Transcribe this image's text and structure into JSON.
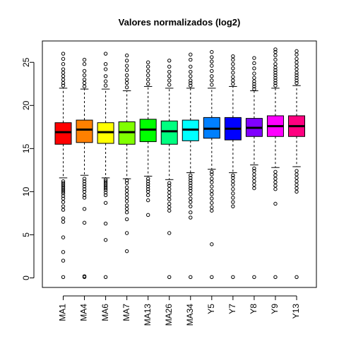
{
  "chart_data": {
    "type": "boxplot",
    "title": "Valores normalizados (log2)",
    "xlabel": "",
    "ylabel": "",
    "ylim": [
      -1,
      27
    ],
    "yticks": [
      0,
      5,
      10,
      15,
      20,
      25
    ],
    "grid": false,
    "legend": "none",
    "categories": [
      "MA1",
      "MA4",
      "MA6",
      "MA7",
      "MA13",
      "MA26",
      "MA34",
      "Y5",
      "Y7",
      "Y8",
      "Y9",
      "Y13"
    ],
    "colors": [
      "#FF0000",
      "#FF8000",
      "#FFFF00",
      "#80FF00",
      "#00FF00",
      "#00FF80",
      "#00FFFF",
      "#0080FF",
      "#0000FF",
      "#8000FF",
      "#FF00FF",
      "#FF0080"
    ],
    "boxes": [
      {
        "whisker_low": 11.6,
        "q1": 15.5,
        "median": 16.9,
        "q3": 18.0,
        "whisker_high": 22.0,
        "outliers": [
          0.1,
          2.0,
          3.0,
          4.7,
          6.5,
          6.9,
          7.9,
          8.3,
          8.8,
          9.2,
          9.5,
          9.8,
          10.0,
          10.2,
          10.4,
          10.6,
          10.8,
          11.0,
          11.2,
          22.3,
          22.6,
          23.0,
          23.4,
          23.8,
          24.2,
          24.8,
          25.4,
          26.0
        ]
      },
      {
        "whisker_low": 11.9,
        "q1": 15.7,
        "median": 17.2,
        "q3": 18.3,
        "whisker_high": 21.9,
        "outliers": [
          0.1,
          0.2,
          6.4,
          8.0,
          9.3,
          9.6,
          10.0,
          10.3,
          10.6,
          10.9,
          11.2,
          11.5,
          22.2,
          22.6,
          23.0,
          23.5,
          24.0,
          24.8,
          25.3
        ]
      },
      {
        "whisker_low": 11.6,
        "q1": 15.6,
        "median": 16.9,
        "q3": 18.0,
        "whisker_high": 21.9,
        "outliers": [
          0.1,
          4.4,
          6.3,
          8.7,
          9.6,
          9.9,
          10.2,
          10.4,
          10.6,
          10.8,
          11.0,
          11.2,
          11.4,
          22.3,
          22.8,
          23.4,
          24.2,
          24.8,
          26.0
        ]
      },
      {
        "whisker_low": 11.5,
        "q1": 15.5,
        "median": 16.9,
        "q3": 18.1,
        "whisker_high": 21.7,
        "outliers": [
          3.1,
          5.2,
          6.8,
          7.6,
          8.0,
          8.4,
          8.9,
          9.3,
          9.7,
          10.1,
          10.5,
          11.0,
          11.3,
          22.1,
          22.6,
          23.0,
          23.5,
          24.1,
          24.6,
          25.2,
          25.8
        ]
      },
      {
        "whisker_low": 11.8,
        "q1": 15.8,
        "median": 17.2,
        "q3": 18.4,
        "whisker_high": 22.2,
        "outliers": [
          7.3,
          9.0,
          9.6,
          10.0,
          10.3,
          10.6,
          10.9,
          11.2,
          11.5,
          22.5,
          23.0,
          23.5,
          24.0,
          24.5,
          25.0
        ]
      },
      {
        "whisker_low": 11.4,
        "q1": 15.5,
        "median": 17.0,
        "q3": 18.2,
        "whisker_high": 22.0,
        "outliers": [
          0.1,
          5.2,
          7.8,
          8.2,
          8.6,
          9.1,
          9.5,
          9.9,
          10.3,
          10.7,
          11.0,
          22.4,
          22.9,
          23.4,
          23.9,
          24.5,
          25.2
        ]
      },
      {
        "whisker_low": 12.2,
        "q1": 15.9,
        "median": 17.2,
        "q3": 18.3,
        "whisker_high": 22.0,
        "outliers": [
          0.1,
          7.0,
          7.6,
          8.3,
          8.8,
          9.2,
          9.7,
          10.1,
          10.4,
          10.7,
          11.0,
          11.3,
          11.6,
          11.9,
          22.3,
          22.6,
          22.9,
          23.4,
          23.9,
          24.5,
          25.3,
          25.9
        ]
      },
      {
        "whisker_low": 12.6,
        "q1": 16.2,
        "median": 17.3,
        "q3": 18.6,
        "whisker_high": 22.0,
        "outliers": [
          0.1,
          3.9,
          7.8,
          8.2,
          8.7,
          9.2,
          9.7,
          10.1,
          10.6,
          11.1,
          11.5,
          12.0,
          12.3,
          22.4,
          22.9,
          23.4,
          24.0,
          24.6,
          25.1,
          25.6,
          26.2
        ]
      },
      {
        "whisker_low": 12.2,
        "q1": 16.0,
        "median": 17.3,
        "q3": 18.6,
        "whisker_high": 22.2,
        "outliers": [
          0.1,
          8.3,
          8.8,
          9.3,
          9.8,
          10.3,
          10.8,
          11.2,
          11.6,
          11.9,
          22.5,
          22.9,
          23.3,
          23.8,
          24.3,
          24.8,
          25.3,
          25.7
        ]
      },
      {
        "whisker_low": 13.1,
        "q1": 16.4,
        "median": 17.4,
        "q3": 18.5,
        "whisker_high": 21.7,
        "outliers": [
          0.1,
          10.4,
          10.8,
          11.2,
          11.6,
          12.0,
          12.4,
          12.7,
          21.9,
          22.2,
          22.5,
          22.8,
          23.2,
          23.7,
          24.3,
          24.9,
          25.5
        ]
      },
      {
        "whisker_low": 12.8,
        "q1": 16.4,
        "median": 17.6,
        "q3": 18.8,
        "whisker_high": 22.0,
        "outliers": [
          0.1,
          8.6,
          10.3,
          10.7,
          11.1,
          11.5,
          11.9,
          12.3,
          22.3,
          22.6,
          22.9,
          23.2,
          23.5,
          23.8,
          24.1,
          24.4,
          24.8,
          25.3,
          25.8,
          26.2,
          26.5
        ]
      },
      {
        "whisker_low": 12.9,
        "q1": 16.4,
        "median": 17.6,
        "q3": 18.8,
        "whisker_high": 22.3,
        "outliers": [
          0.1,
          10.0,
          10.4,
          10.8,
          11.2,
          11.6,
          12.0,
          12.4,
          22.6,
          22.9,
          23.2,
          23.5,
          23.8,
          24.2,
          24.6,
          25.0,
          25.4,
          25.9,
          26.3
        ]
      }
    ]
  }
}
